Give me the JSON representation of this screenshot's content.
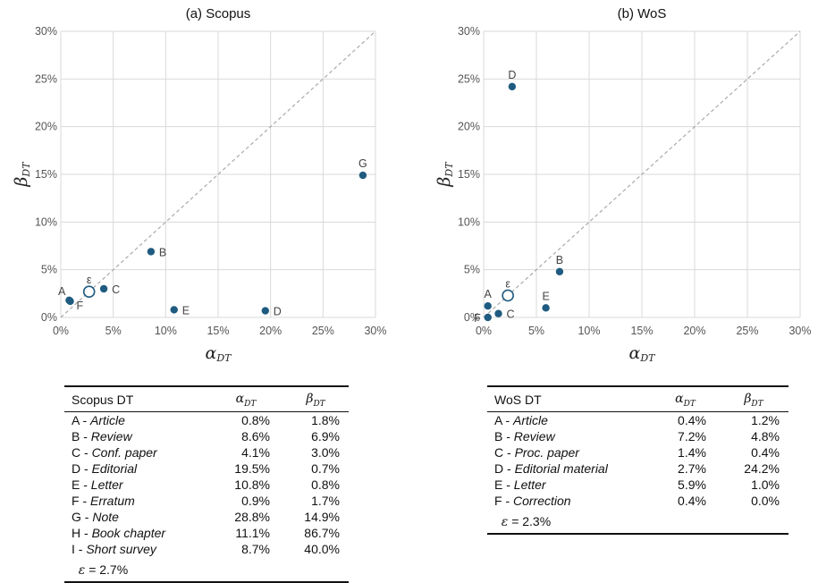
{
  "chart_data": [
    {
      "type": "scatter",
      "title": "(a) Scopus",
      "xlabel": "α",
      "xlabel_sub": "DT",
      "ylabel": "β",
      "ylabel_sub": "DT",
      "xlim": [
        0,
        30
      ],
      "ylim": [
        0,
        30
      ],
      "xticks": [
        "0%",
        "5%",
        "10%",
        "15%",
        "20%",
        "25%",
        "30%"
      ],
      "yticks": [
        "0%",
        "5%",
        "10%",
        "15%",
        "20%",
        "25%",
        "30%"
      ],
      "grid": true,
      "diagonal": true,
      "marker_color": "#1f5b80",
      "points": [
        {
          "label": "A",
          "x": 0.8,
          "y": 1.8,
          "label_pos": "left-up"
        },
        {
          "label": "F",
          "x": 0.9,
          "y": 1.7,
          "label_pos": "right-down"
        },
        {
          "label": "C",
          "x": 4.1,
          "y": 3.0,
          "label_pos": "right"
        },
        {
          "label": "B",
          "x": 8.6,
          "y": 6.9,
          "label_pos": "right"
        },
        {
          "label": "E",
          "x": 10.8,
          "y": 0.8,
          "label_pos": "right"
        },
        {
          "label": "D",
          "x": 19.5,
          "y": 0.7,
          "label_pos": "right"
        },
        {
          "label": "G",
          "x": 28.8,
          "y": 14.9,
          "label_pos": "up"
        },
        {
          "label": "ε",
          "x": 2.7,
          "y": 2.7,
          "hollow": true,
          "label_pos": "up"
        }
      ]
    },
    {
      "type": "scatter",
      "title": "(b) WoS",
      "xlabel": "α",
      "xlabel_sub": "DT",
      "ylabel": "β",
      "ylabel_sub": "DT",
      "xlim": [
        0,
        30
      ],
      "ylim": [
        0,
        30
      ],
      "xticks": [
        "0%",
        "5%",
        "10%",
        "15%",
        "20%",
        "25%",
        "30%"
      ],
      "yticks": [
        "0%",
        "5%",
        "10%",
        "15%",
        "20%",
        "25%",
        "30%"
      ],
      "grid": true,
      "diagonal": true,
      "marker_color": "#1f5b80",
      "points": [
        {
          "label": "A",
          "x": 0.4,
          "y": 1.2,
          "label_pos": "up"
        },
        {
          "label": "F",
          "x": 0.4,
          "y": 0.0,
          "label_pos": "left"
        },
        {
          "label": "C",
          "x": 1.4,
          "y": 0.4,
          "label_pos": "right"
        },
        {
          "label": "B",
          "x": 7.2,
          "y": 4.8,
          "label_pos": "up"
        },
        {
          "label": "E",
          "x": 5.9,
          "y": 1.0,
          "label_pos": "up"
        },
        {
          "label": "D",
          "x": 2.7,
          "y": 24.2,
          "label_pos": "up"
        },
        {
          "label": "ε",
          "x": 2.3,
          "y": 2.3,
          "hollow": true,
          "label_pos": "up"
        }
      ]
    }
  ],
  "scopus_table": {
    "header": "Scopus DT",
    "col_alpha": "α",
    "col_beta": "β",
    "col_sub": "DT",
    "rows": [
      {
        "code": "A -",
        "name": "Article",
        "alpha": "0.8%",
        "beta": "1.8%"
      },
      {
        "code": "B -",
        "name": "Review",
        "alpha": "8.6%",
        "beta": "6.9%"
      },
      {
        "code": "C -",
        "name": "Conf. paper",
        "alpha": "4.1%",
        "beta": "3.0%"
      },
      {
        "code": "D -",
        "name": "Editorial",
        "alpha": "19.5%",
        "beta": "0.7%"
      },
      {
        "code": "E -",
        "name": "Letter",
        "alpha": "10.8%",
        "beta": "0.8%"
      },
      {
        "code": "F -",
        "name": "Erratum",
        "alpha": "0.9%",
        "beta": "1.7%"
      },
      {
        "code": "G -",
        "name": "Note",
        "alpha": "28.8%",
        "beta": "14.9%"
      },
      {
        "code": "H -",
        "name": "Book chapter",
        "alpha": "11.1%",
        "beta": "86.7%"
      },
      {
        "code": "I -",
        "name": "Short survey",
        "alpha": "8.7%",
        "beta": "40.0%"
      }
    ],
    "eps_symbol": "ε",
    "eps_text": "=  2.7%"
  },
  "wos_table": {
    "header": "WoS DT",
    "col_alpha": "α",
    "col_beta": "β",
    "col_sub": "DT",
    "rows": [
      {
        "code": "A -",
        "name": "Article",
        "alpha": "0.4%",
        "beta": "1.2%"
      },
      {
        "code": "B -",
        "name": "Review",
        "alpha": "7.2%",
        "beta": "4.8%"
      },
      {
        "code": "C -",
        "name": "Proc. paper",
        "alpha": "1.4%",
        "beta": "0.4%"
      },
      {
        "code": "D -",
        "name": "Editorial material",
        "alpha": "2.7%",
        "beta": "24.2%"
      },
      {
        "code": "E -",
        "name": "Letter",
        "alpha": "5.9%",
        "beta": "1.0%"
      },
      {
        "code": "F -",
        "name": "Correction",
        "alpha": "0.4%",
        "beta": "0.0%"
      }
    ],
    "eps_symbol": "ε",
    "eps_text": "= 2.3%"
  }
}
